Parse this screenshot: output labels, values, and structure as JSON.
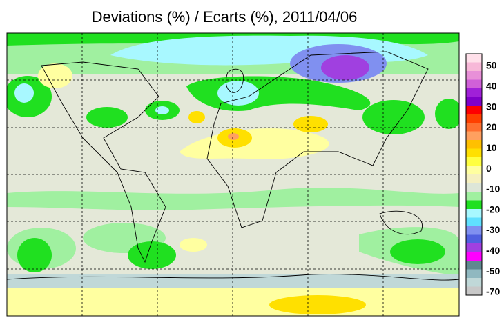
{
  "title": "Deviations (%) / Ecarts (%), 2011/04/06",
  "colorbar": {
    "ticks": [
      50,
      40,
      30,
      20,
      10,
      0,
      -10,
      -20,
      -30,
      -40,
      -50,
      -70
    ],
    "colors": [
      "#ffe0ea",
      "#f7b8d8",
      "#e890d8",
      "#d060d8",
      "#a020d8",
      "#8000c8",
      "#ff0000",
      "#ff4000",
      "#ff7030",
      "#ffa060",
      "#ffc000",
      "#ffe000",
      "#ffff40",
      "#ffffa0",
      "#f5f0c0",
      "#dde6d8",
      "#a0f0a0",
      "#20e020",
      "#a8f8ff",
      "#60e0ff",
      "#8090f0",
      "#5060e0",
      "#a040e0",
      "#ff00ff",
      "#608890",
      "#90b8c0",
      "#c0d8d8",
      "#c8c8c8"
    ]
  }
}
